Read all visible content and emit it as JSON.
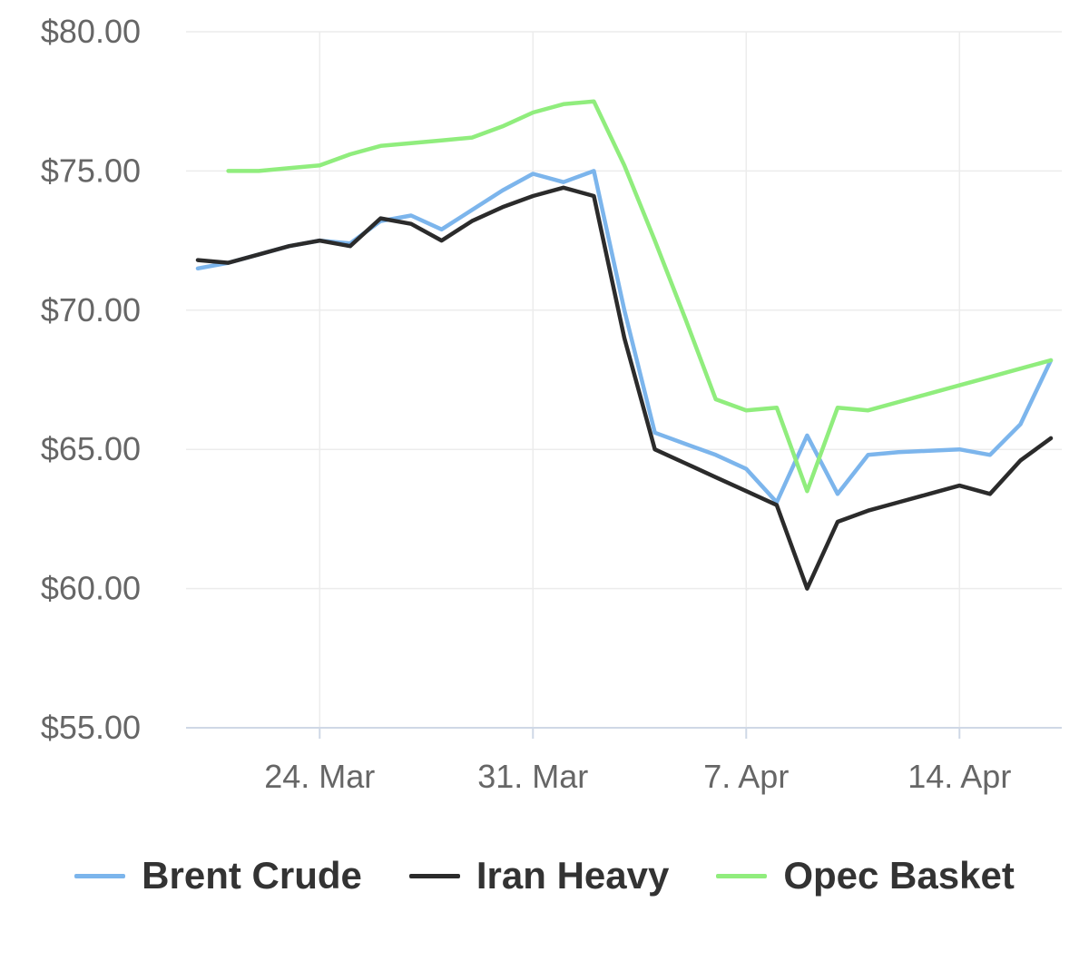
{
  "chart_data": {
    "type": "line",
    "title": "",
    "xlabel": "",
    "ylabel": "",
    "y_tick_labels": [
      "$55.00",
      "$60.00",
      "$65.00",
      "$70.00",
      "$75.00",
      "$80.00"
    ],
    "y_ticks": [
      55,
      60,
      65,
      70,
      75,
      80
    ],
    "ylim": [
      55,
      80
    ],
    "x_tick_labels": [
      "24. Mar",
      "31. Mar",
      "7. Apr",
      "14. Apr"
    ],
    "x_tick_dates": [
      "2019-03-24",
      "2019-03-31",
      "2019-04-07",
      "2019-04-14"
    ],
    "xlim": [
      "2019-03-20",
      "2019-04-17"
    ],
    "grid": true,
    "legend_position": "bottom",
    "series": [
      {
        "name": "Brent Crude",
        "color": "#7cb5ec",
        "points": [
          [
            "2019-03-20",
            71.5
          ],
          [
            "2019-03-21",
            71.7
          ],
          [
            "2019-03-22",
            72.0
          ],
          [
            "2019-03-23",
            72.3
          ],
          [
            "2019-03-24",
            72.5
          ],
          [
            "2019-03-25",
            72.4
          ],
          [
            "2019-03-26",
            73.2
          ],
          [
            "2019-03-27",
            73.4
          ],
          [
            "2019-03-28",
            72.9
          ],
          [
            "2019-03-29",
            73.6
          ],
          [
            "2019-03-30",
            74.3
          ],
          [
            "2019-03-31",
            74.9
          ],
          [
            "2019-04-01",
            74.6
          ],
          [
            "2019-04-02",
            75.0
          ],
          [
            "2019-04-03",
            70.0
          ],
          [
            "2019-04-04",
            65.6
          ],
          [
            "2019-04-05",
            65.2
          ],
          [
            "2019-04-06",
            64.8
          ],
          [
            "2019-04-07",
            64.3
          ],
          [
            "2019-04-08",
            63.1
          ],
          [
            "2019-04-09",
            65.5
          ],
          [
            "2019-04-10",
            63.4
          ],
          [
            "2019-04-11",
            64.8
          ],
          [
            "2019-04-12",
            64.9
          ],
          [
            "2019-04-13",
            64.95
          ],
          [
            "2019-04-14",
            65.0
          ],
          [
            "2019-04-15",
            64.8
          ],
          [
            "2019-04-16",
            65.9
          ],
          [
            "2019-04-17",
            68.2
          ]
        ]
      },
      {
        "name": "Iran Heavy",
        "color": "#2b2b2b",
        "points": [
          [
            "2019-03-20",
            71.8
          ],
          [
            "2019-03-21",
            71.7
          ],
          [
            "2019-03-22",
            72.0
          ],
          [
            "2019-03-23",
            72.3
          ],
          [
            "2019-03-24",
            72.5
          ],
          [
            "2019-03-25",
            72.3
          ],
          [
            "2019-03-26",
            73.3
          ],
          [
            "2019-03-27",
            73.1
          ],
          [
            "2019-03-28",
            72.5
          ],
          [
            "2019-03-29",
            73.2
          ],
          [
            "2019-03-30",
            73.7
          ],
          [
            "2019-03-31",
            74.1
          ],
          [
            "2019-04-01",
            74.4
          ],
          [
            "2019-04-02",
            74.1
          ],
          [
            "2019-04-03",
            69.0
          ],
          [
            "2019-04-04",
            65.0
          ],
          [
            "2019-04-05",
            64.5
          ],
          [
            "2019-04-06",
            64.0
          ],
          [
            "2019-04-07",
            63.5
          ],
          [
            "2019-04-08",
            63.0
          ],
          [
            "2019-04-09",
            60.0
          ],
          [
            "2019-04-10",
            62.4
          ],
          [
            "2019-04-11",
            62.8
          ],
          [
            "2019-04-12",
            63.1
          ],
          [
            "2019-04-13",
            63.4
          ],
          [
            "2019-04-14",
            63.7
          ],
          [
            "2019-04-15",
            63.4
          ],
          [
            "2019-04-16",
            64.6
          ],
          [
            "2019-04-17",
            65.4
          ]
        ]
      },
      {
        "name": "Opec Basket",
        "color": "#90ed7d",
        "points": [
          [
            "2019-03-21",
            75.0
          ],
          [
            "2019-03-22",
            75.0
          ],
          [
            "2019-03-23",
            75.1
          ],
          [
            "2019-03-24",
            75.2
          ],
          [
            "2019-03-25",
            75.6
          ],
          [
            "2019-03-26",
            75.9
          ],
          [
            "2019-03-27",
            76.0
          ],
          [
            "2019-03-28",
            76.1
          ],
          [
            "2019-03-29",
            76.2
          ],
          [
            "2019-03-30",
            76.6
          ],
          [
            "2019-03-31",
            77.1
          ],
          [
            "2019-04-01",
            77.4
          ],
          [
            "2019-04-02",
            77.5
          ],
          [
            "2019-04-03",
            75.2
          ],
          [
            "2019-04-04",
            72.5
          ],
          [
            "2019-04-05",
            69.7
          ],
          [
            "2019-04-06",
            66.8
          ],
          [
            "2019-04-07",
            66.4
          ],
          [
            "2019-04-08",
            66.5
          ],
          [
            "2019-04-09",
            63.5
          ],
          [
            "2019-04-10",
            66.5
          ],
          [
            "2019-04-11",
            66.4
          ],
          [
            "2019-04-12",
            66.7
          ],
          [
            "2019-04-13",
            67.0
          ],
          [
            "2019-04-14",
            67.3
          ],
          [
            "2019-04-15",
            67.6
          ],
          [
            "2019-04-16",
            67.9
          ],
          [
            "2019-04-17",
            68.2
          ]
        ]
      }
    ]
  }
}
